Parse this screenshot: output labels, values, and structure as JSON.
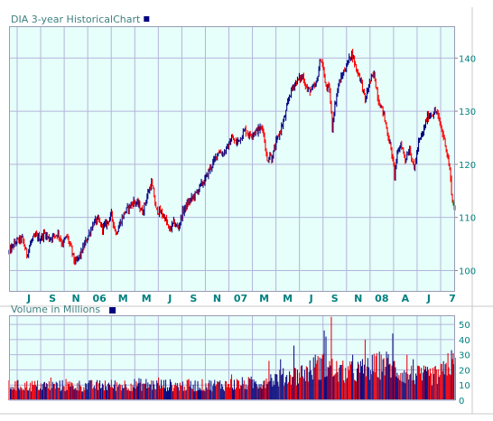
{
  "chart_data": [
    {
      "type": "line",
      "title": "DIA 3-year HistoricalChart",
      "title_marker_color": "#000080",
      "x_tick_labels": [
        "J",
        "S",
        "N",
        "06",
        "M",
        "M",
        "J",
        "S",
        "N",
        "07",
        "M",
        "M",
        "J",
        "S",
        "N",
        "08",
        "A",
        "J",
        "7"
      ],
      "y_ticks": [
        100,
        110,
        120,
        130,
        140
      ],
      "ylim": [
        96,
        146
      ],
      "grid": true,
      "background_color": "#e6fffa",
      "grid_color": "#b4b4dc",
      "up_color": "#000080",
      "down_color": "#ff0000",
      "last_bar_color": "#008000",
      "axis_label_color": "#008080",
      "price_path": [
        [
          0,
          103.5
        ],
        [
          8,
          105.5
        ],
        [
          15,
          106
        ],
        [
          20,
          103
        ],
        [
          25,
          105.5
        ],
        [
          30,
          106.5
        ],
        [
          35,
          106
        ],
        [
          40,
          107
        ],
        [
          45,
          106
        ],
        [
          50,
          106.5
        ],
        [
          55,
          107
        ],
        [
          60,
          105
        ],
        [
          65,
          106.5
        ],
        [
          70,
          104
        ],
        [
          73,
          102
        ],
        [
          75,
          101.5
        ],
        [
          80,
          103
        ],
        [
          85,
          105
        ],
        [
          90,
          107
        ],
        [
          95,
          109
        ],
        [
          100,
          109.5
        ],
        [
          105,
          108
        ],
        [
          110,
          109
        ],
        [
          115,
          110.5
        ],
        [
          120,
          107
        ],
        [
          125,
          109
        ],
        [
          130,
          111
        ],
        [
          135,
          112
        ],
        [
          140,
          113
        ],
        [
          145,
          112.5
        ],
        [
          150,
          111
        ],
        [
          155,
          114
        ],
        [
          160,
          116.5
        ],
        [
          163,
          114
        ],
        [
          165,
          111.5
        ],
        [
          170,
          111
        ],
        [
          175,
          110
        ],
        [
          180,
          107.5
        ],
        [
          185,
          109
        ],
        [
          190,
          108
        ],
        [
          195,
          111
        ],
        [
          200,
          112.5
        ],
        [
          205,
          113.5
        ],
        [
          210,
          114.5
        ],
        [
          215,
          116
        ],
        [
          220,
          117
        ],
        [
          225,
          119
        ],
        [
          230,
          120.5
        ],
        [
          235,
          122.5
        ],
        [
          240,
          122
        ],
        [
          245,
          123
        ],
        [
          250,
          125
        ],
        [
          255,
          124
        ],
        [
          260,
          125
        ],
        [
          265,
          126.5
        ],
        [
          270,
          125.5
        ],
        [
          275,
          126
        ],
        [
          280,
          126.5
        ],
        [
          285,
          127
        ],
        [
          290,
          120.5
        ],
        [
          293,
          122
        ],
        [
          295,
          121
        ],
        [
          300,
          124
        ],
        [
          305,
          126.5
        ],
        [
          310,
          129
        ],
        [
          315,
          133
        ],
        [
          320,
          135
        ],
        [
          325,
          136
        ],
        [
          330,
          136.5
        ],
        [
          335,
          134
        ],
        [
          340,
          134
        ],
        [
          345,
          135
        ],
        [
          350,
          140
        ],
        [
          353,
          138
        ],
        [
          355,
          135
        ],
        [
          360,
          134
        ],
        [
          363,
          127
        ],
        [
          365,
          130
        ],
        [
          370,
          135
        ],
        [
          375,
          137
        ],
        [
          380,
          139
        ],
        [
          385,
          141
        ],
        [
          390,
          138
        ],
        [
          395,
          136
        ],
        [
          400,
          132
        ],
        [
          405,
          135.5
        ],
        [
          410,
          137
        ],
        [
          415,
          132
        ],
        [
          420,
          130
        ],
        [
          425,
          126
        ],
        [
          430,
          122
        ],
        [
          433,
          118
        ],
        [
          435,
          121
        ],
        [
          440,
          124
        ],
        [
          445,
          121
        ],
        [
          450,
          123
        ],
        [
          455,
          119
        ],
        [
          460,
          124
        ],
        [
          465,
          126
        ],
        [
          470,
          129
        ],
        [
          475,
          129.5
        ],
        [
          480,
          130
        ],
        [
          485,
          127
        ],
        [
          490,
          124
        ],
        [
          495,
          119
        ],
        [
          498,
          113
        ],
        [
          501,
          111.5
        ]
      ]
    },
    {
      "type": "bar",
      "title": "Volume in Millions",
      "title_marker_color": "#000080",
      "unit": "millions of shares",
      "y_ticks": [
        0,
        10,
        20,
        30,
        40,
        50
      ],
      "ylim": [
        0,
        56
      ],
      "grid": true,
      "volume_profile": [
        [
          0,
          10
        ],
        [
          50,
          10
        ],
        [
          100,
          10
        ],
        [
          150,
          11
        ],
        [
          200,
          10
        ],
        [
          250,
          11
        ],
        [
          280,
          12
        ],
        [
          290,
          14
        ],
        [
          300,
          15
        ],
        [
          320,
          17
        ],
        [
          330,
          19
        ],
        [
          340,
          21
        ],
        [
          350,
          24
        ],
        [
          360,
          22
        ],
        [
          370,
          20
        ],
        [
          380,
          19
        ],
        [
          400,
          21
        ],
        [
          420,
          25
        ],
        [
          430,
          24
        ],
        [
          440,
          19
        ],
        [
          460,
          17
        ],
        [
          480,
          17
        ],
        [
          490,
          20
        ],
        [
          500,
          21
        ]
      ],
      "volume_spikes": [
        [
          47,
          15
        ],
        [
          64,
          14
        ],
        [
          108,
          13
        ],
        [
          168,
          15
        ],
        [
          202,
          14
        ],
        [
          250,
          17
        ],
        [
          292,
          26
        ],
        [
          305,
          27
        ],
        [
          320,
          36
        ],
        [
          344,
          30
        ],
        [
          354,
          46
        ],
        [
          356,
          42
        ],
        [
          362,
          55
        ],
        [
          386,
          30
        ],
        [
          400,
          40
        ],
        [
          420,
          27
        ],
        [
          431,
          44
        ],
        [
          447,
          30
        ],
        [
          454,
          27
        ],
        [
          470,
          22
        ],
        [
          485,
          24
        ],
        [
          493,
          31
        ],
        [
          497,
          33
        ],
        [
          499,
          31
        ],
        [
          501,
          28
        ]
      ]
    }
  ]
}
